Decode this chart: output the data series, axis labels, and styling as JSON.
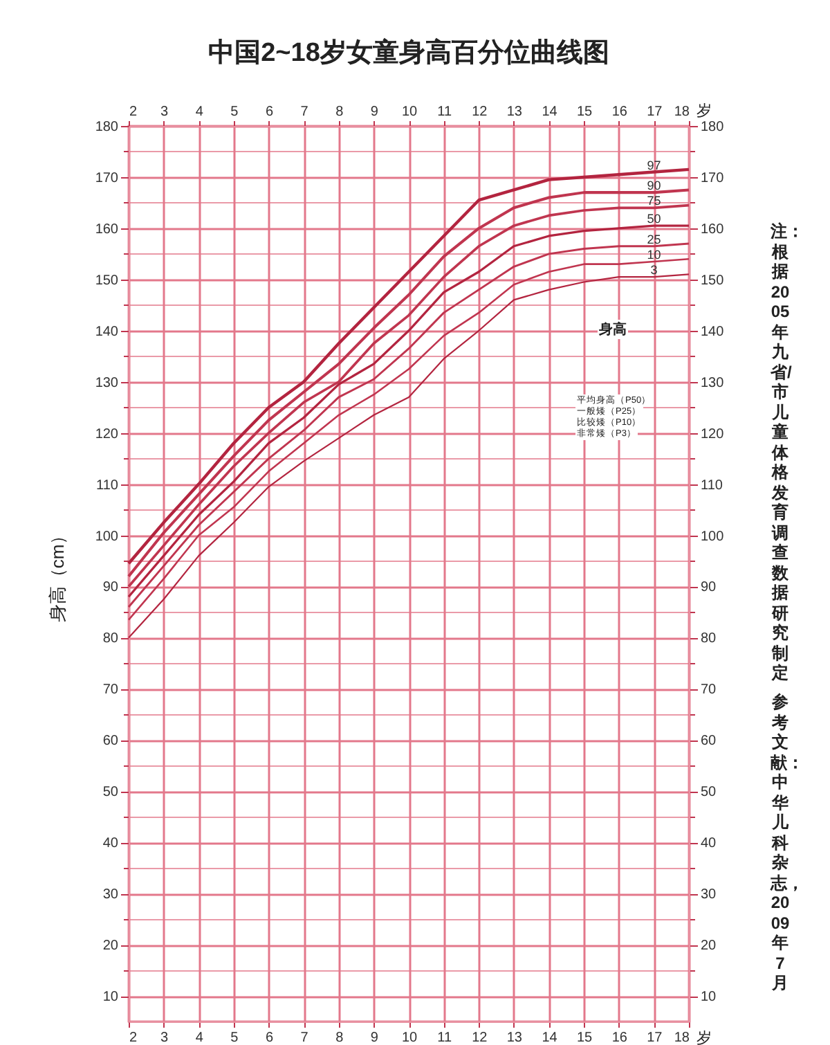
{
  "chart_data": {
    "type": "line",
    "title": "中国2~18岁女童身高百分位曲线图",
    "xlabel": "岁",
    "x2label": "岁",
    "ylabel": "身高（cm）",
    "x": [
      2,
      3,
      4,
      5,
      6,
      7,
      8,
      9,
      10,
      11,
      12,
      13,
      14,
      15,
      16,
      17,
      18
    ],
    "series": [
      {
        "name": "97",
        "color": "#b3243f",
        "values": [
          94.5,
          102.5,
          110,
          118,
          125,
          130,
          137.5,
          144.5,
          151.5,
          158.5,
          165.5,
          167.5,
          169.5,
          170,
          170.5,
          171,
          171.5
        ]
      },
      {
        "name": "90",
        "color": "#c0354f",
        "values": [
          92,
          100.5,
          108,
          115.5,
          122.5,
          128,
          133.5,
          140.5,
          147,
          154.5,
          160,
          164,
          166,
          167,
          167,
          167,
          167.5
        ]
      },
      {
        "name": "75",
        "color": "#c0354f",
        "values": [
          90,
          98,
          106,
          113.5,
          120,
          126,
          130,
          137.5,
          143,
          150.5,
          156.5,
          160.5,
          162.5,
          163.5,
          164,
          164,
          164.5
        ]
      },
      {
        "name": "50",
        "color": "#b3243f",
        "values": [
          88,
          96,
          104,
          110.5,
          118,
          123,
          129.5,
          133.5,
          140,
          147.5,
          151.5,
          156.5,
          158.5,
          159.5,
          160,
          160.5,
          160.5
        ]
      },
      {
        "name": "25",
        "color": "#c0354f",
        "values": [
          86,
          94,
          102,
          108.5,
          115,
          120.5,
          127,
          130.5,
          136.5,
          143.5,
          148,
          152.5,
          155,
          156,
          156.5,
          156.5,
          157
        ]
      },
      {
        "name": "10",
        "color": "#c0354f",
        "values": [
          83.5,
          91.5,
          100,
          105.5,
          112.5,
          118,
          123.5,
          127.5,
          132.5,
          139,
          143.5,
          149,
          151.5,
          153,
          153,
          153.5,
          154
        ]
      },
      {
        "name": "3",
        "color": "#b3243f",
        "values": [
          80,
          87.5,
          96,
          102.5,
          109.5,
          114.5,
          119,
          123.5,
          127,
          134.5,
          140,
          146,
          148,
          149.5,
          150.5,
          150.5,
          151
        ]
      }
    ],
    "xlim": [
      2,
      18
    ],
    "xticks": [
      2,
      3,
      4,
      5,
      6,
      7,
      8,
      9,
      10,
      11,
      12,
      13,
      14,
      15,
      16,
      17,
      18
    ],
    "x2lim": [
      2,
      18
    ],
    "x2ticks": [
      2,
      3,
      4,
      5,
      6,
      7,
      8,
      9,
      10,
      11,
      12,
      13,
      14,
      15,
      16,
      17,
      18
    ],
    "ylim": [
      5,
      180
    ],
    "yticks": [
      10,
      {
        "value": 15,
        "label": null
      },
      20,
      {
        "value": 25,
        "label": null
      },
      30,
      {
        "value": 35,
        "label": null
      },
      40,
      {
        "value": 45,
        "label": null
      },
      50,
      {
        "value": 55,
        "label": null
      },
      60,
      {
        "value": 65,
        "label": null
      },
      70,
      {
        "value": 75,
        "label": null
      },
      80,
      {
        "value": 85,
        "label": null
      },
      90,
      {
        "value": 95,
        "label": null
      },
      100,
      {
        "value": 105,
        "label": null
      },
      110,
      {
        "value": 115,
        "label": null
      },
      120,
      {
        "value": 125,
        "label": null
      },
      130,
      {
        "value": 135,
        "label": null
      },
      140,
      {
        "value": 145,
        "label": null
      },
      150,
      {
        "value": 155,
        "label": null
      },
      160,
      {
        "value": 165,
        "label": null
      },
      170,
      {
        "value": 175,
        "label": null
      },
      180
    ],
    "y2lim": [
      5,
      180
    ],
    "y2ticks": [
      10,
      {
        "value": 15,
        "label": null
      },
      20,
      {
        "value": 25,
        "label": null
      },
      30,
      {
        "value": 35,
        "label": null
      },
      40,
      {
        "value": 45,
        "label": null
      },
      50,
      {
        "value": 55,
        "label": null
      },
      60,
      {
        "value": 65,
        "label": null
      },
      70,
      {
        "value": 75,
        "label": null
      },
      80,
      {
        "value": 85,
        "label": null
      },
      90,
      {
        "value": 95,
        "label": null
      },
      100,
      {
        "value": 105,
        "label": null
      },
      110,
      {
        "value": 115,
        "label": null
      },
      120,
      {
        "value": 125,
        "label": null
      },
      130,
      {
        "value": 135,
        "label": null
      },
      140,
      {
        "value": 145,
        "label": null
      },
      150,
      {
        "value": 155,
        "label": null
      },
      160,
      {
        "value": 165,
        "label": null
      },
      170,
      {
        "value": 175,
        "label": null
      },
      180
    ],
    "grid": true,
    "annotations": [
      "身高",
      "平均身高（P50）",
      "一般矮（P25）",
      "比较矮（P10）",
      "非常矮（P3）",
      "注：根据2005年九省/市儿童体格发育调查数据研究制定",
      "参考文献：中华儿科杂志，2009年7月"
    ]
  }
}
